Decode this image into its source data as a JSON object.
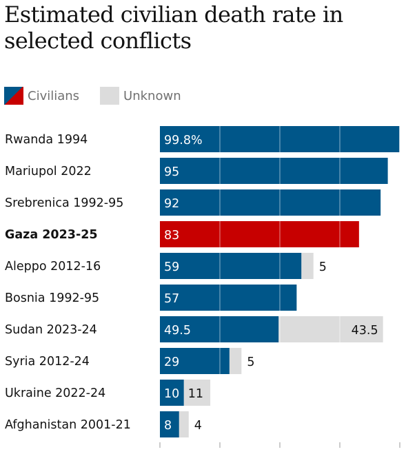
{
  "title": "Estimated civilian death rate in selected conflicts",
  "legend": {
    "civilians": "Civilians",
    "unknown": "Unknown"
  },
  "colors": {
    "civilians": "#005689",
    "highlight": "#c70000",
    "unknown": "#dcdcdc",
    "gridline": "#ffffff",
    "tick": "#999999"
  },
  "chart_data": {
    "type": "bar",
    "orientation": "horizontal",
    "stacked": true,
    "xlim": [
      0,
      100
    ],
    "grid": true,
    "legend_position": "top-left",
    "categories": [
      "Rwanda 1994",
      "Mariupol 2022",
      "Srebrenica 1992-95",
      "Gaza 2023-25",
      "Aleppo 2012-16",
      "Bosnia 1992-95",
      "Sudan 2023-24",
      "Syria 2012-24",
      "Ukraine 2022-24",
      "Afghanistan 2001-21"
    ],
    "highlight_category": "Gaza 2023-25",
    "series": [
      {
        "name": "Civilians",
        "values": [
          99.8,
          95,
          92,
          83,
          59,
          57,
          49.5,
          29,
          10,
          8
        ],
        "labels": [
          "99.8%",
          "95",
          "92",
          "83",
          "59",
          "57",
          "49.5",
          "29",
          "10",
          "8"
        ]
      },
      {
        "name": "Unknown",
        "values": [
          0,
          0,
          0,
          0,
          5,
          0,
          43.5,
          5,
          11,
          4
        ],
        "labels": [
          "",
          "",
          "",
          "",
          "5",
          "",
          "43.5",
          "5",
          "11",
          "4"
        ]
      }
    ]
  }
}
